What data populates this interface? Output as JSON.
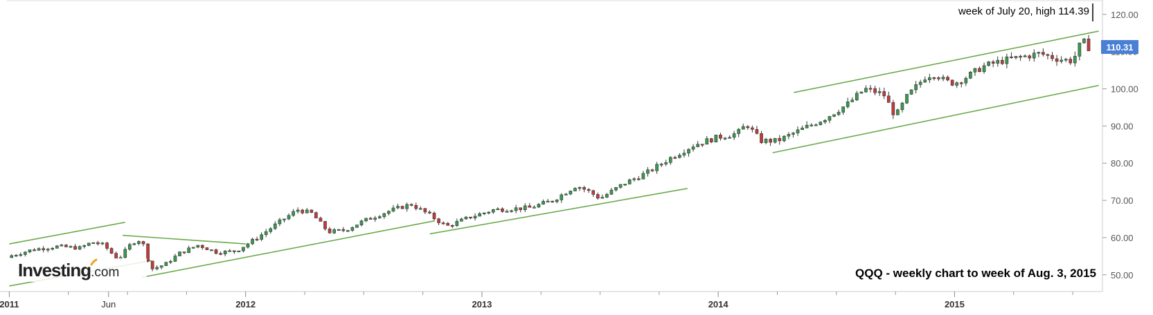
{
  "chart_data": {
    "type": "candlestick",
    "title": "QQQ - weekly chart to week of Aug. 3, 2015",
    "annotation": "week of July 20, high 114.39",
    "current_price": "110.31",
    "yticks": [
      "50.00",
      "60.00",
      "70.00",
      "80.00",
      "90.00",
      "100.00",
      "110.00",
      "120.00"
    ],
    "ylim": [
      45.5,
      123.5
    ],
    "xlim": [
      2010.99,
      2015.62
    ],
    "xticks": [
      {
        "label": "2011",
        "x": 2011.0,
        "major": true
      },
      {
        "label": "Jun",
        "x": 2011.42,
        "major": false
      },
      {
        "label": "2012",
        "x": 2012.0,
        "major": true
      },
      {
        "label": "2013",
        "x": 2013.0,
        "major": true
      },
      {
        "label": "2014",
        "x": 2014.0,
        "major": true
      },
      {
        "label": "2015",
        "x": 2015.0,
        "major": true
      }
    ],
    "anchors": [
      [
        2011.0,
        55.0
      ],
      [
        2011.1,
        56.8
      ],
      [
        2011.2,
        57.6
      ],
      [
        2011.3,
        57.2
      ],
      [
        2011.35,
        58.8
      ],
      [
        2011.4,
        58.0
      ],
      [
        2011.46,
        54.0
      ],
      [
        2011.52,
        58.7
      ],
      [
        2011.56,
        59.5
      ],
      [
        2011.6,
        51.5
      ],
      [
        2011.66,
        52.8
      ],
      [
        2011.72,
        55.8
      ],
      [
        2011.8,
        58.0
      ],
      [
        2011.88,
        56.0
      ],
      [
        2011.96,
        56.4
      ],
      [
        2012.05,
        60.0
      ],
      [
        2012.15,
        64.5
      ],
      [
        2012.22,
        67.5
      ],
      [
        2012.28,
        66.5
      ],
      [
        2012.35,
        61.5
      ],
      [
        2012.42,
        62.0
      ],
      [
        2012.5,
        64.5
      ],
      [
        2012.6,
        67.0
      ],
      [
        2012.7,
        69.0
      ],
      [
        2012.78,
        66.0
      ],
      [
        2012.85,
        63.0
      ],
      [
        2012.95,
        65.5
      ],
      [
        2013.05,
        67.5
      ],
      [
        2013.2,
        68.0
      ],
      [
        2013.3,
        70.0
      ],
      [
        2013.4,
        74.0
      ],
      [
        2013.45,
        72.5
      ],
      [
        2013.5,
        70.5
      ],
      [
        2013.6,
        74.5
      ],
      [
        2013.7,
        77.5
      ],
      [
        2013.8,
        81.5
      ],
      [
        2013.9,
        85.0
      ],
      [
        2014.0,
        87.0
      ],
      [
        2014.08,
        88.0
      ],
      [
        2014.12,
        90.5
      ],
      [
        2014.18,
        86.0
      ],
      [
        2014.25,
        86.0
      ],
      [
        2014.35,
        89.0
      ],
      [
        2014.45,
        92.0
      ],
      [
        2014.55,
        96.0
      ],
      [
        2014.62,
        100.0
      ],
      [
        2014.7,
        98.5
      ],
      [
        2014.75,
        92.5
      ],
      [
        2014.8,
        98.0
      ],
      [
        2014.88,
        103.5
      ],
      [
        2014.92,
        104.0
      ],
      [
        2014.96,
        102.0
      ],
      [
        2015.0,
        101.5
      ],
      [
        2015.06,
        103.5
      ],
      [
        2015.12,
        106.0
      ],
      [
        2015.2,
        107.5
      ],
      [
        2015.28,
        108.5
      ],
      [
        2015.36,
        109.5
      ],
      [
        2015.44,
        108.0
      ],
      [
        2015.5,
        107.5
      ],
      [
        2015.54,
        113.0
      ],
      [
        2015.58,
        110.31
      ]
    ],
    "trendlines": [
      {
        "x": [
          2011.0,
          2011.49
        ],
        "y": [
          58.3,
          64.1
        ]
      },
      {
        "x": [
          2011.0,
          2011.6
        ],
        "y": [
          47.0,
          53.8
        ]
      },
      {
        "x": [
          2011.48,
          2012.0
        ],
        "y": [
          60.6,
          58.3
        ]
      },
      {
        "x": [
          2011.56,
          2012.8
        ],
        "y": [
          49.3,
          64.5
        ]
      },
      {
        "x": [
          2012.78,
          2013.87
        ],
        "y": [
          61.0,
          73.2
        ]
      },
      {
        "x": [
          2014.23,
          2015.61
        ],
        "y": [
          82.8,
          100.9
        ]
      },
      {
        "x": [
          2014.32,
          2015.61
        ],
        "y": [
          99.0,
          115.5
        ]
      }
    ],
    "colors": {
      "up": "#3a9a4f",
      "down": "#c43a3a",
      "trend": "#6aaa4a",
      "axis": "#cccccc",
      "badge": "#4a7fd6"
    }
  },
  "brand": {
    "logo_word": "Investing",
    "logo_suffix": ".com"
  }
}
